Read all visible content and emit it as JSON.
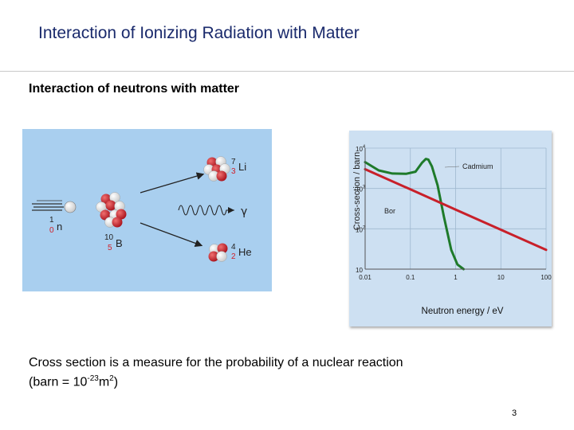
{
  "slide": {
    "title": "Interaction of Ionizing Radiation with Matter",
    "subtitle": "Interaction of neutrons with matter",
    "caption_line1": "Cross section is a measure for the probability  of a nuclear reaction",
    "caption_line2_prefix": "(barn = 10",
    "caption_exp1": "-23",
    "caption_mid": "m",
    "caption_exp2": "2",
    "caption_suffix": ")",
    "page_number": "3"
  },
  "reaction": {
    "neutron_mass": "1",
    "neutron_charge": "0",
    "neutron_symbol": "n",
    "boron_mass": "10",
    "boron_charge": "5",
    "boron_symbol": "B",
    "lithium_mass": "7",
    "lithium_charge": "3",
    "lithium_symbol": "Li",
    "gamma_symbol": "γ",
    "helium_mass": "4",
    "helium_charge": "2",
    "helium_symbol": "He",
    "colors": {
      "proton": "#c8202a",
      "neutron": "#ffffff",
      "charge_text": "#d0202a",
      "background": "#a9cfef"
    }
  },
  "chart_data": {
    "type": "line",
    "xlabel": "Neutron energy / eV",
    "ylabel": "Cross-section / barn",
    "x_scale": "log",
    "y_scale": "log",
    "xlim": [
      0.01,
      100
    ],
    "ylim": [
      10,
      10000
    ],
    "x_ticks": [
      {
        "value": 0.01,
        "label": "0.01"
      },
      {
        "value": 0.1,
        "label": "0.1"
      },
      {
        "value": 1,
        "label": "1"
      },
      {
        "value": 10,
        "label": "10"
      },
      {
        "value": 100,
        "label": "100"
      }
    ],
    "y_ticks": [
      {
        "value": 10,
        "base": "10",
        "exp": ""
      },
      {
        "value": 100,
        "base": "10",
        "exp": "2"
      },
      {
        "value": 1000,
        "base": "10",
        "exp": "3"
      },
      {
        "value": 10000,
        "base": "10",
        "exp": "4"
      }
    ],
    "grid": true,
    "series": [
      {
        "name": "Cadmium",
        "color": "#1e7a2a",
        "points": [
          [
            0.01,
            4500
          ],
          [
            0.02,
            2800
          ],
          [
            0.04,
            2350
          ],
          [
            0.08,
            2300
          ],
          [
            0.13,
            2600
          ],
          [
            0.18,
            4300
          ],
          [
            0.22,
            5400
          ],
          [
            0.25,
            5200
          ],
          [
            0.3,
            3500
          ],
          [
            0.4,
            1200
          ],
          [
            0.55,
            200
          ],
          [
            0.8,
            30
          ],
          [
            1.1,
            13
          ],
          [
            1.5,
            10
          ]
        ]
      },
      {
        "name": "Bor",
        "color": "#c8202a",
        "points": [
          [
            0.01,
            3000
          ],
          [
            0.1,
            950
          ],
          [
            1,
            300
          ],
          [
            10,
            95
          ],
          [
            100,
            30
          ]
        ]
      }
    ]
  }
}
